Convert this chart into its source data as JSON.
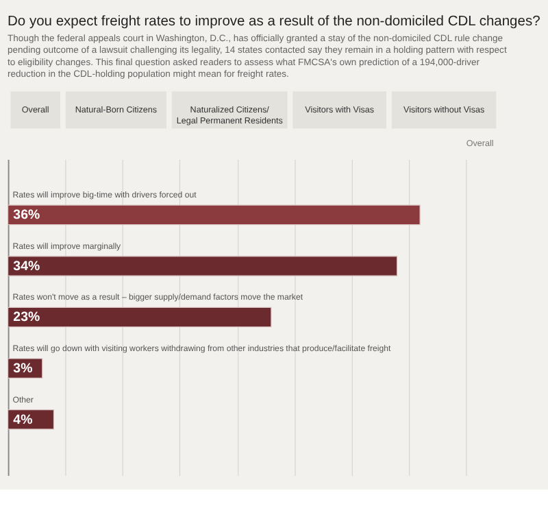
{
  "chart_data": {
    "type": "bar",
    "orientation": "horizontal",
    "title": "Do you expect freight rates to improve as a result of the non-domiciled CDL changes?",
    "subtitle": "Though the federal appeals court in Washington, D.C., has officially granted a stay of the non-domiciled CDL rule change pending outcome of a lawsuit challenging its legality, 14 states contacted say they remain in a holding pattern with respect to eligibility changes. This final question asked readers to assess what FMCSA's own prediction of a 194,000-driver reduction in the CDL-holding population might mean for freight rates.",
    "annotations": [
      "Overall",
      "Natural-Born Citizens",
      "Naturalized Citizens/\nLegal Permanent Residents",
      "Visitors with Visas",
      "Visitors without Visas",
      "Overall"
    ],
    "categories": [
      "Rates will improve big-time with drivers forced out",
      "Rates will improve marginally",
      "Rates won't move as a result – bigger supply/demand factors move the market",
      "Rates will go down with visiting workers withdrawing from other industries that produce/facilitate freight",
      "Other"
    ],
    "values": [
      36,
      34,
      23,
      3,
      4
    ],
    "colors": [
      "#8b3a3e",
      "#6b2a2e",
      "#6b2a2e",
      "#6b2a2e",
      "#6b2a2e"
    ],
    "value_labels": [
      "36%",
      "34%",
      "23%",
      "3%",
      "4%"
    ],
    "xlim": [
      0,
      40
    ],
    "xticks": [
      {
        "value": 0,
        "label": null
      },
      {
        "value": 5,
        "label": null
      },
      {
        "value": 10,
        "label": null
      },
      {
        "value": 15,
        "label": null
      },
      {
        "value": 20,
        "label": null
      },
      {
        "value": 25,
        "label": null
      },
      {
        "value": 30,
        "label": null
      },
      {
        "value": 35,
        "label": null
      },
      {
        "value": 40,
        "label": null
      }
    ],
    "grid": "x",
    "tick_labels": "y"
  }
}
